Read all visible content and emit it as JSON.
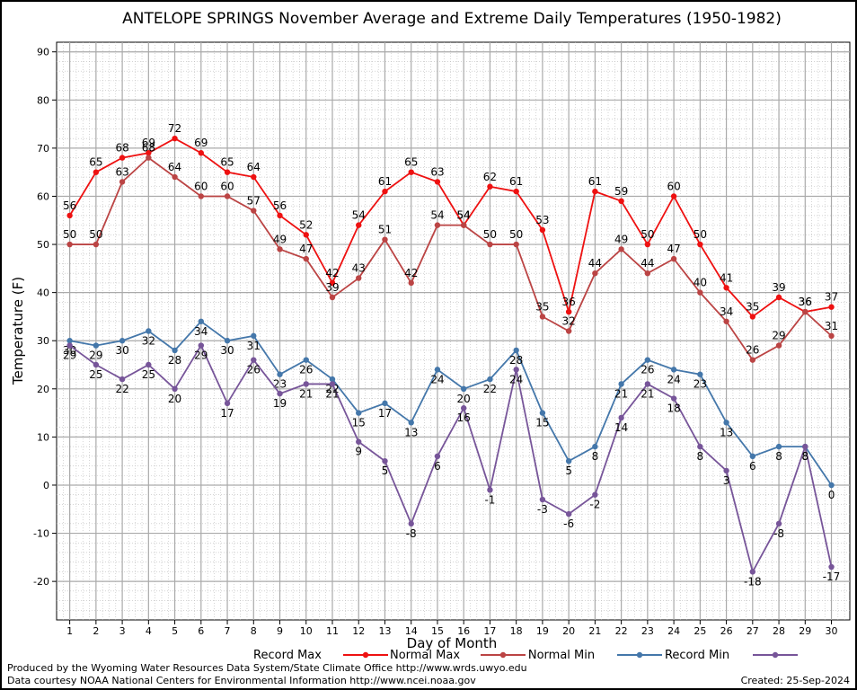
{
  "chart_data": {
    "type": "line",
    "title": "ANTELOPE SPRINGS November Average and Extreme Daily Temperatures (1950-1982)",
    "xlabel": "Day of Month",
    "ylabel": "Temperature (F)",
    "ylim": [
      -28,
      92
    ],
    "yticks": [
      -20,
      -10,
      0,
      10,
      20,
      30,
      40,
      50,
      60,
      70,
      80,
      90
    ],
    "x": [
      1,
      2,
      3,
      4,
      5,
      6,
      7,
      8,
      9,
      10,
      11,
      12,
      13,
      14,
      15,
      16,
      17,
      18,
      19,
      20,
      21,
      22,
      23,
      24,
      25,
      26,
      27,
      28,
      29,
      30
    ],
    "grid": true,
    "legend_position": "bottom",
    "series": [
      {
        "name": "Record Max",
        "color": "#ee1111",
        "label_pos": "above",
        "values": [
          56,
          65,
          68,
          69,
          72,
          69,
          65,
          64,
          56,
          52,
          42,
          54,
          61,
          65,
          63,
          54,
          62,
          61,
          53,
          36,
          61,
          59,
          50,
          60,
          50,
          41,
          35,
          39,
          36,
          37
        ]
      },
      {
        "name": "Normal Max",
        "color": "#bb4444",
        "label_pos": "above",
        "values": [
          50,
          50,
          63,
          68,
          64,
          60,
          60,
          57,
          49,
          47,
          39,
          43,
          51,
          42,
          54,
          54,
          50,
          50,
          35,
          32,
          44,
          49,
          44,
          47,
          40,
          34,
          26,
          29,
          36,
          31
        ]
      },
      {
        "name": "Normal Min",
        "color": "#4477aa",
        "label_pos": "below",
        "values": [
          30,
          29,
          30,
          32,
          28,
          34,
          30,
          31,
          23,
          26,
          22,
          15,
          17,
          13,
          24,
          20,
          22,
          28,
          15,
          5,
          8,
          21,
          26,
          24,
          23,
          13,
          6,
          8,
          8,
          0
        ]
      },
      {
        "name": "Record Min",
        "color": "#775599",
        "label_pos": "below",
        "values": [
          29,
          25,
          22,
          25,
          20,
          29,
          17,
          26,
          19,
          21,
          21,
          9,
          5,
          -8,
          6,
          16,
          -1,
          24,
          -3,
          -6,
          -2,
          14,
          21,
          18,
          8,
          3,
          -18,
          -8,
          8,
          -17
        ]
      }
    ]
  },
  "footer": {
    "credit_line1": "Produced by the Wyoming Water Resources Data System/State Climate Office http://www.wrds.uwyo.edu",
    "credit_line2": "Data courtesy NOAA National Centers for Environmental Information http://www.ncei.noaa.gov",
    "created": "Created:  25-Sep-2024"
  }
}
